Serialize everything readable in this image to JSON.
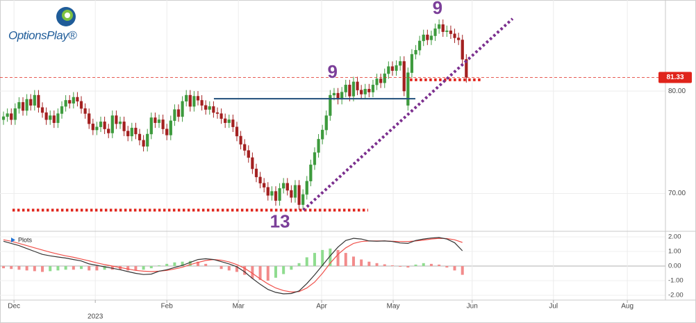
{
  "logo": "OptionsPlay®",
  "chart_data": [
    {
      "type": "candlestick",
      "x": [
        0,
        1,
        2,
        3,
        4,
        5,
        6,
        7,
        8,
        9,
        10,
        11,
        12,
        13,
        14,
        15,
        16,
        17,
        18,
        19,
        20,
        21,
        22,
        23,
        24,
        25,
        26,
        27,
        28,
        29,
        30,
        31,
        32,
        33,
        34,
        35,
        36,
        37,
        38,
        39,
        40,
        41,
        42,
        43,
        44,
        45,
        46,
        47,
        48,
        49,
        50,
        51,
        52,
        53,
        54,
        55,
        56,
        57,
        58,
        59,
        60,
        61,
        62,
        63,
        64,
        65,
        66,
        67,
        68,
        69,
        70,
        71,
        72,
        73,
        74,
        75,
        76,
        77,
        78,
        79,
        80,
        81,
        82,
        83,
        84,
        85,
        86,
        87,
        88,
        89,
        90,
        91,
        92,
        93,
        94,
        95,
        96,
        97,
        98,
        99,
        100,
        101,
        102,
        103,
        104,
        105,
        106,
        107,
        108,
        109,
        110,
        111,
        112,
        113,
        114,
        115,
        116,
        117,
        118,
        119
      ],
      "open": [
        77.2,
        77.5,
        77.8,
        77.2,
        78.3,
        78.9,
        78.1,
        79.2,
        78.6,
        79.6,
        78.4,
        77.9,
        77.2,
        77.6,
        76.9,
        77.8,
        78.5,
        79.1,
        78.8,
        79.4,
        79.0,
        78.3,
        77.8,
        76.8,
        76.2,
        76.5,
        77.0,
        76.3,
        75.9,
        77.6,
        76.8,
        77.0,
        76.1,
        75.6,
        76.4,
        75.8,
        75.2,
        74.6,
        75.8,
        77.4,
        76.9,
        77.2,
        76.3,
        75.7,
        77.1,
        78.2,
        77.5,
        79.0,
        79.6,
        78.5,
        79.5,
        79.1,
        78.6,
        78.2,
        78.5,
        77.9,
        77.8,
        77.3,
        76.9,
        77.2,
        76.5,
        75.6,
        74.8,
        74.2,
        73.5,
        72.4,
        71.6,
        71.0,
        70.6,
        69.8,
        70.2,
        69.3,
        70.5,
        71.0,
        70.3,
        69.6,
        70.8,
        68.9,
        69.9,
        71.2,
        72.8,
        74.0,
        75.3,
        76.2,
        77.6,
        79.6,
        79.8,
        79.2,
        79.9,
        80.6,
        79.5,
        80.9,
        80.1,
        79.7,
        80.2,
        79.9,
        80.6,
        81.2,
        80.8,
        81.7,
        82.4,
        82.0,
        82.5,
        82.9,
        78.6,
        81.8,
        83.6,
        84.0,
        84.9,
        85.5,
        85.0,
        85.4,
        86.1,
        86.5,
        85.8,
        85.9,
        85.6,
        85.2,
        85.0,
        83.1
      ],
      "high": [
        78.0,
        78.3,
        78.3,
        78.8,
        79.4,
        79.4,
        79.7,
        79.7,
        80.1,
        80.1,
        78.9,
        78.4,
        78.1,
        78.1,
        78.3,
        79.0,
        79.6,
        79.6,
        79.9,
        79.9,
        79.5,
        78.8,
        78.3,
        77.3,
        77.0,
        77.5,
        77.5,
        76.8,
        78.1,
        78.1,
        77.5,
        77.5,
        76.6,
        76.9,
        76.9,
        76.3,
        75.7,
        76.3,
        77.9,
        77.9,
        77.7,
        77.7,
        76.8,
        77.6,
        78.7,
        78.7,
        79.5,
        80.1,
        80.1,
        80.0,
        80.0,
        79.6,
        79.1,
        79.0,
        79.0,
        78.4,
        78.3,
        77.8,
        77.7,
        77.7,
        77.0,
        76.1,
        75.3,
        74.7,
        74.0,
        72.9,
        72.1,
        71.5,
        71.1,
        70.7,
        70.7,
        71.0,
        71.5,
        71.5,
        70.8,
        71.3,
        71.3,
        70.4,
        71.7,
        73.3,
        74.5,
        75.8,
        76.7,
        78.1,
        80.1,
        80.3,
        80.3,
        80.4,
        81.1,
        81.1,
        81.4,
        81.4,
        80.6,
        80.7,
        80.7,
        81.1,
        81.7,
        81.7,
        82.2,
        82.9,
        82.9,
        83.0,
        83.4,
        83.4,
        82.3,
        84.1,
        84.5,
        85.4,
        86.0,
        86.0,
        85.9,
        86.6,
        87.0,
        87.0,
        86.4,
        86.4,
        86.1,
        85.7,
        85.5,
        83.6
      ],
      "low": [
        76.7,
        77.0,
        76.7,
        76.7,
        77.8,
        77.6,
        77.6,
        78.1,
        78.1,
        77.9,
        77.4,
        76.7,
        76.7,
        76.4,
        76.4,
        77.3,
        78.0,
        78.3,
        78.3,
        78.5,
        77.8,
        77.3,
        76.3,
        75.7,
        75.7,
        76.0,
        75.8,
        75.4,
        75.4,
        76.3,
        76.3,
        75.6,
        75.1,
        75.1,
        75.3,
        74.7,
        74.1,
        74.1,
        75.3,
        76.4,
        76.4,
        75.8,
        75.2,
        75.2,
        76.6,
        77.0,
        77.0,
        78.5,
        78.0,
        78.0,
        78.6,
        78.1,
        77.7,
        77.7,
        77.4,
        77.3,
        76.8,
        76.4,
        76.4,
        76.0,
        75.1,
        74.3,
        73.7,
        73.0,
        71.9,
        71.1,
        70.5,
        70.1,
        69.3,
        69.3,
        68.8,
        68.8,
        70.0,
        69.8,
        69.1,
        69.1,
        68.4,
        68.4,
        69.4,
        70.7,
        72.3,
        73.5,
        74.8,
        75.7,
        77.1,
        79.1,
        78.7,
        78.7,
        79.4,
        79.0,
        79.0,
        79.6,
        79.2,
        79.2,
        79.4,
        79.4,
        80.1,
        80.3,
        80.3,
        81.2,
        81.5,
        81.5,
        82.0,
        79.5,
        78.1,
        81.3,
        83.1,
        83.5,
        84.4,
        84.5,
        84.5,
        84.9,
        85.6,
        85.3,
        85.3,
        85.1,
        84.7,
        84.5,
        82.6,
        80.83
      ],
      "close": [
        77.5,
        77.8,
        77.2,
        78.3,
        78.9,
        78.1,
        79.2,
        78.6,
        79.6,
        78.4,
        77.9,
        77.2,
        77.6,
        76.9,
        77.8,
        78.5,
        79.1,
        78.8,
        79.4,
        79.0,
        78.3,
        77.8,
        76.8,
        76.2,
        76.5,
        77.0,
        76.3,
        75.9,
        77.6,
        76.8,
        77.0,
        76.1,
        75.6,
        76.4,
        75.8,
        75.2,
        74.6,
        75.8,
        77.4,
        76.9,
        77.2,
        76.3,
        75.7,
        77.1,
        78.2,
        77.5,
        79.0,
        79.6,
        78.5,
        79.5,
        79.1,
        78.6,
        78.2,
        78.5,
        77.9,
        77.8,
        77.3,
        76.9,
        77.2,
        76.5,
        75.6,
        74.8,
        74.2,
        73.5,
        72.4,
        71.6,
        71.0,
        70.6,
        69.8,
        70.2,
        69.3,
        70.5,
        71.0,
        70.3,
        69.6,
        70.8,
        68.9,
        69.9,
        71.2,
        72.8,
        74.0,
        75.3,
        76.2,
        77.6,
        79.6,
        79.8,
        79.2,
        79.9,
        80.6,
        79.5,
        80.9,
        80.1,
        79.7,
        80.2,
        79.9,
        80.6,
        81.2,
        80.8,
        81.7,
        82.4,
        82.0,
        82.5,
        82.9,
        80.0,
        81.8,
        83.6,
        84.0,
        84.9,
        85.5,
        85.0,
        85.4,
        86.1,
        86.5,
        85.8,
        85.9,
        85.6,
        85.2,
        85.0,
        83.1,
        81.33
      ],
      "up_color": "#3d9a3d",
      "down_color": "#a32020",
      "last_color": "#e0241b",
      "xlim": [
        -0.9,
        170.2
      ],
      "ylim": [
        66.5,
        88.9
      ],
      "yticks": [
        {
          "value": 70,
          "label": "70.00"
        },
        {
          "value": 80,
          "label": "80.00"
        }
      ],
      "lines": [
        {
          "x": [
            54.1,
            105.9
          ],
          "y": [
            79.25,
            79.25
          ],
          "color": "#1f4e79",
          "style": "solid"
        },
        {
          "x": [
            2.3,
            93.75
          ],
          "y": [
            68.37,
            68.37
          ],
          "color": "#e0241b",
          "style": "dotted"
        },
        {
          "x": [
            104.5,
            122.9
          ],
          "y": [
            81.1,
            81.1
          ],
          "color": "#e0241b",
          "style": "dotted"
        },
        {
          "x": [
            77.1,
            130.9
          ],
          "y": [
            68.37,
            87.07
          ],
          "color": "#7b2f8e",
          "style": "dotted"
        }
      ],
      "labels": [
        {
          "text": "9",
          "x": 111.6,
          "y": 88.0
        },
        {
          "text": "9",
          "x": 84.6,
          "y": 81.77
        },
        {
          "text": "13",
          "x": 71.1,
          "y": 67.14
        }
      ],
      "label_color": "#7b3f99"
    },
    {
      "type": "macd",
      "legend_label": "Plots",
      "x": [
        0,
        2,
        4,
        6,
        8,
        10,
        12,
        14,
        16,
        18,
        20,
        22,
        24,
        26,
        28,
        30,
        32,
        34,
        36,
        38,
        40,
        42,
        44,
        46,
        48,
        50,
        52,
        54,
        56,
        58,
        60,
        62,
        64,
        66,
        68,
        70,
        72,
        74,
        76,
        78,
        80,
        82,
        84,
        86,
        88,
        90,
        92,
        94,
        96,
        98,
        100,
        102,
        104,
        106,
        108,
        110,
        112,
        114,
        116,
        118
      ],
      "macd": [
        1.7,
        1.55,
        1.4,
        1.2,
        1.0,
        0.8,
        0.7,
        0.62,
        0.55,
        0.45,
        0.35,
        0.15,
        0.05,
        -0.05,
        -0.15,
        -0.25,
        -0.38,
        -0.5,
        -0.58,
        -0.55,
        -0.35,
        -0.25,
        -0.1,
        0.05,
        0.25,
        0.45,
        0.5,
        0.45,
        0.3,
        0.15,
        -0.05,
        -0.4,
        -0.85,
        -1.25,
        -1.6,
        -1.8,
        -1.9,
        -1.88,
        -1.7,
        -1.2,
        -0.6,
        0.05,
        0.7,
        1.3,
        1.75,
        1.9,
        1.85,
        1.72,
        1.7,
        1.72,
        1.68,
        1.58,
        1.55,
        1.75,
        1.85,
        1.92,
        1.95,
        1.85,
        1.6,
        1.05
      ],
      "signal": [
        1.8,
        1.7,
        1.55,
        1.4,
        1.25,
        1.1,
        0.95,
        0.82,
        0.7,
        0.6,
        0.48,
        0.36,
        0.22,
        0.1,
        0.0,
        -0.1,
        -0.2,
        -0.3,
        -0.35,
        -0.38,
        -0.35,
        -0.3,
        -0.2,
        -0.08,
        0.1,
        0.25,
        0.38,
        0.45,
        0.4,
        0.28,
        0.1,
        -0.15,
        -0.5,
        -0.88,
        -1.22,
        -1.5,
        -1.68,
        -1.78,
        -1.75,
        -1.5,
        -1.1,
        -0.5,
        0.2,
        0.8,
        1.25,
        1.55,
        1.68,
        1.72,
        1.72,
        1.72,
        1.7,
        1.68,
        1.68,
        1.72,
        1.78,
        1.85,
        1.9,
        1.88,
        1.8,
        1.62
      ],
      "histogram": [
        -0.15,
        -0.2,
        -0.25,
        -0.3,
        -0.35,
        -0.4,
        -0.35,
        -0.3,
        -0.25,
        -0.25,
        -0.2,
        -0.3,
        -0.3,
        -0.25,
        -0.25,
        -0.25,
        -0.3,
        -0.3,
        -0.25,
        -0.15,
        0.05,
        0.15,
        0.25,
        0.3,
        0.35,
        0.3,
        0.15,
        0.0,
        -0.2,
        -0.3,
        -0.4,
        -0.6,
        -0.85,
        -0.95,
        -1.0,
        -0.8,
        -0.55,
        -0.25,
        0.2,
        0.6,
        0.9,
        1.1,
        1.2,
        1.1,
        0.9,
        0.65,
        0.45,
        0.3,
        0.2,
        0.12,
        0.05,
        -0.05,
        -0.1,
        0.1,
        0.2,
        0.15,
        0.1,
        -0.1,
        -0.3,
        -0.6
      ],
      "macd_color": "#333333",
      "signal_color": "#f0504a",
      "rising_color": "#8fdc8f",
      "falling_color": "#f28b8b",
      "xlim": [
        -0.9,
        170.2
      ],
      "ylim": [
        -2.33,
        2.38
      ],
      "yticks": [
        {
          "value": 2,
          "label": "2.00"
        },
        {
          "value": 1,
          "label": "1.00"
        },
        {
          "value": 0,
          "label": "0.00"
        },
        {
          "value": -1,
          "label": "-1.00"
        },
        {
          "value": -2,
          "label": "-2.00"
        }
      ],
      "xticks": [
        {
          "value": 2.7,
          "label": "Dec"
        },
        {
          "value": 42,
          "label": "Feb"
        },
        {
          "value": 60.4,
          "label": "Mar"
        },
        {
          "value": 81.8,
          "label": "Apr"
        },
        {
          "value": 100.2,
          "label": "May"
        },
        {
          "value": 120.5,
          "label": "Jun"
        },
        {
          "value": 141.4,
          "label": "Jul"
        },
        {
          "value": 160.4,
          "label": "Aug"
        }
      ],
      "year_ticks": [
        {
          "value": 23.6,
          "label": "2023"
        }
      ]
    }
  ]
}
